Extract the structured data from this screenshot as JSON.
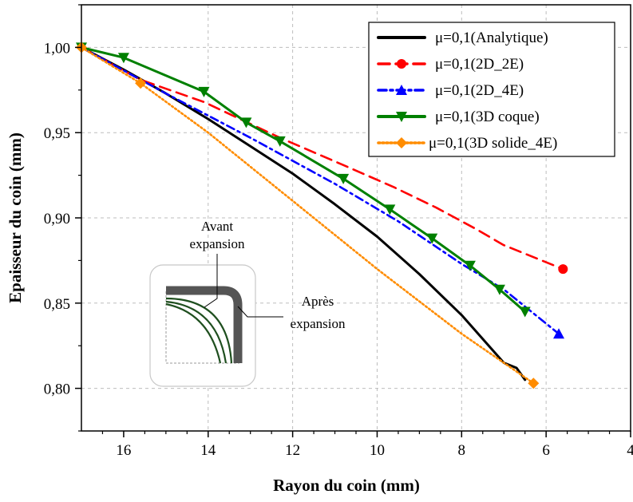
{
  "chart_data": {
    "type": "line",
    "xlabel": "Rayon du coin (mm)",
    "ylabel": "Epaisseur du coin (mm)",
    "xlim": [
      17,
      4
    ],
    "ylim": [
      0.775,
      1.025
    ],
    "x_reversed": true,
    "xticks": [
      16,
      14,
      12,
      10,
      8,
      6,
      4
    ],
    "xtick_labels": [
      "16",
      "14",
      "12",
      "10",
      "8",
      "6",
      "4"
    ],
    "yticks": [
      0.8,
      0.85,
      0.9,
      0.95,
      1.0
    ],
    "ytick_labels": [
      "0,80",
      "0,85",
      "0,90",
      "0,95",
      "1,00"
    ],
    "grid": true,
    "legend_position": "top-right",
    "series": [
      {
        "name": "μ=0,1(Analytique)",
        "color": "#000000",
        "style": "solid",
        "marker": "none",
        "x": [
          17.0,
          16.0,
          15.0,
          14.0,
          13.0,
          12.0,
          11.0,
          10.0,
          9.0,
          8.0,
          7.5,
          7.0,
          6.7,
          6.5
        ],
        "y": [
          1.0,
          0.987,
          0.973,
          0.958,
          0.942,
          0.926,
          0.908,
          0.889,
          0.867,
          0.843,
          0.829,
          0.815,
          0.812,
          0.805
        ]
      },
      {
        "name": "μ=0,1(2D_2E)",
        "color": "#ff0000",
        "style": "dashed",
        "marker": "circle",
        "x": [
          17.0,
          15.6,
          14.1,
          12.3,
          10.8,
          9.6,
          8.6,
          7.7,
          7.0,
          5.6
        ],
        "y": [
          1.0,
          0.981,
          0.968,
          0.947,
          0.931,
          0.918,
          0.906,
          0.894,
          0.884,
          0.87
        ],
        "marker_x": [
          5.6
        ],
        "marker_y": [
          0.87
        ]
      },
      {
        "name": "μ=0,1(2D_4E)",
        "color": "#0000ff",
        "style": "dashdot",
        "marker": "triangle-up",
        "x": [
          17.0,
          15.0,
          13.0,
          11.0,
          9.5,
          8.0,
          7.0,
          6.5,
          5.7
        ],
        "y": [
          1.0,
          0.973,
          0.947,
          0.92,
          0.898,
          0.873,
          0.858,
          0.848,
          0.832
        ],
        "marker_x": [
          5.7
        ],
        "marker_y": [
          0.832
        ]
      },
      {
        "name": "μ=0,1(3D coque)",
        "color": "#008000",
        "style": "solid",
        "marker": "triangle-down",
        "x": [
          17.0,
          16.0,
          14.1,
          13.1,
          12.3,
          10.8,
          9.7,
          8.7,
          7.8,
          7.1,
          6.5
        ],
        "y": [
          1.0,
          0.994,
          0.974,
          0.956,
          0.945,
          0.923,
          0.905,
          0.888,
          0.872,
          0.858,
          0.845
        ]
      },
      {
        "name": "μ=0,1(3D solide_4E)",
        "color": "#ff8c00",
        "style": "dotted",
        "marker": "diamond",
        "x": [
          17.0,
          15.6,
          14.0,
          12.0,
          10.0,
          8.0,
          7.0,
          6.3
        ],
        "y": [
          1.0,
          0.979,
          0.95,
          0.91,
          0.87,
          0.832,
          0.815,
          0.803
        ],
        "marker_x": [
          17.0,
          15.6,
          6.3
        ],
        "marker_y": [
          1.0,
          0.979,
          0.803
        ]
      }
    ],
    "inset": {
      "label_before": [
        "Avant",
        "expansion"
      ],
      "label_after": [
        "Après",
        "expansion"
      ]
    }
  }
}
